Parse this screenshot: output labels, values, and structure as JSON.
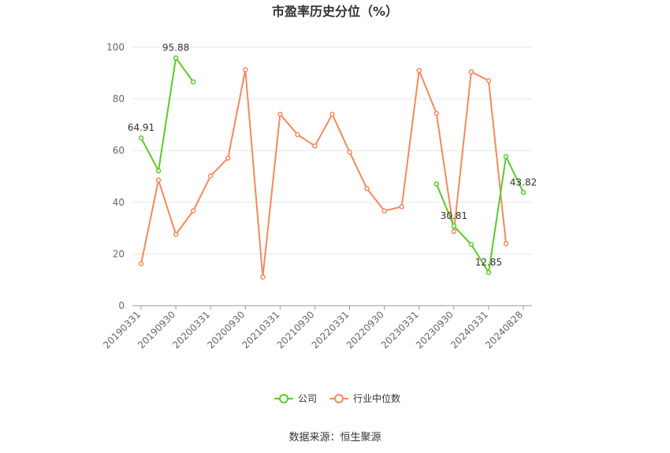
{
  "chart_data": {
    "type": "line",
    "title": "市盈率历史分位（%）",
    "xlabel": "",
    "ylabel": "",
    "ylim": [
      0,
      100
    ],
    "yticks": [
      0,
      20,
      40,
      60,
      80,
      100
    ],
    "grid": true,
    "x": [
      "20190331",
      "20190630",
      "20190930",
      "20191231",
      "20200331",
      "20200630",
      "20200930",
      "20201231",
      "20210331",
      "20210630",
      "20210930",
      "20211231",
      "20220331",
      "20220630",
      "20220930",
      "20221231",
      "20230331",
      "20230630",
      "20230930",
      "20231231",
      "20240331",
      "20240630",
      "20240828"
    ],
    "x_tick_labels": [
      "20190331",
      "20190930",
      "20200331",
      "20200930",
      "20210331",
      "20210930",
      "20220331",
      "20220930",
      "20230331",
      "20230930",
      "20240331",
      "20240828"
    ],
    "series": [
      {
        "name": "公司",
        "color": "#5cc929",
        "values": [
          64.91,
          52.2,
          95.88,
          86.6,
          null,
          null,
          null,
          null,
          null,
          null,
          null,
          null,
          null,
          null,
          null,
          null,
          null,
          47.1,
          30.81,
          23.7,
          12.85,
          57.7,
          43.82
        ],
        "labels": {
          "0": "64.91",
          "2": "95.88",
          "18": "30.81",
          "20": "12.85",
          "22": "43.82"
        }
      },
      {
        "name": "行业中位数",
        "color": "#f5895b",
        "values": [
          16.2,
          48.6,
          27.6,
          36.7,
          50.2,
          57.1,
          91.3,
          11.1,
          74.1,
          66.2,
          61.8,
          74.1,
          59.4,
          45.3,
          36.7,
          38.3,
          91.0,
          74.4,
          28.7,
          90.5,
          87.1,
          24.0,
          null
        ]
      }
    ],
    "legend_position": "bottom-center"
  },
  "source": "数据来源：恒生聚源"
}
